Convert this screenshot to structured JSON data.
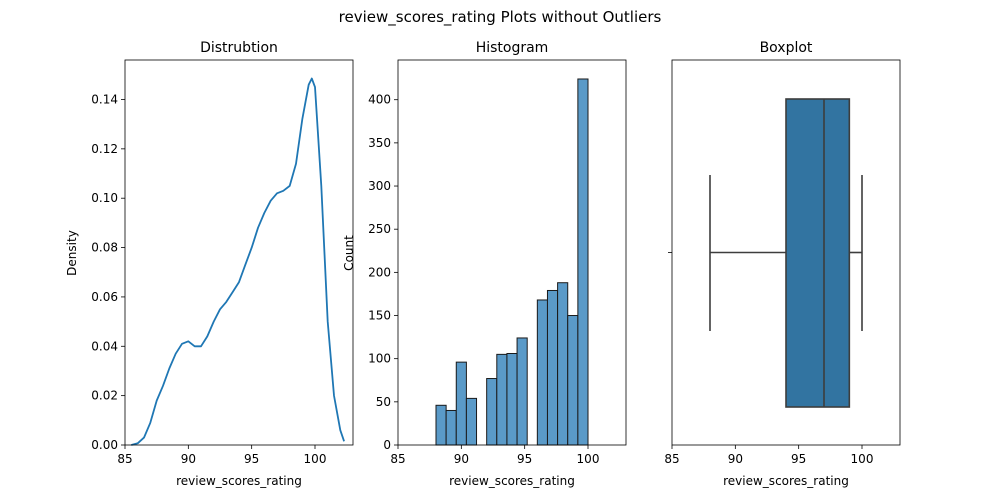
{
  "figure": {
    "suptitle": "review_scores_rating Plots without Outliers"
  },
  "chart_data": [
    {
      "type": "area",
      "title": "Distrubtion",
      "xlabel": "review_scores_rating",
      "ylabel": "Density",
      "xlim": [
        85,
        103
      ],
      "ylim": [
        0,
        0.156
      ],
      "xticks": [
        "85",
        "90",
        "95",
        "100"
      ],
      "yticks": [
        "0.00",
        "0.02",
        "0.04",
        "0.06",
        "0.08",
        "0.10",
        "0.12",
        "0.14"
      ],
      "series": [
        {
          "x": [
            85.5,
            86.0,
            86.5,
            87.0,
            87.5,
            88.0,
            88.5,
            89.0,
            89.5,
            90.0,
            90.5,
            91.0,
            91.5,
            92.0,
            92.5,
            93.0,
            93.5,
            94.0,
            94.5,
            95.0,
            95.5,
            96.0,
            96.5,
            97.0,
            97.5,
            98.0,
            98.5,
            99.0,
            99.5,
            99.75,
            100.0,
            100.5,
            101.0,
            101.5,
            102.0,
            102.3
          ],
          "y": [
            0.0,
            0.0007,
            0.003,
            0.009,
            0.018,
            0.024,
            0.031,
            0.037,
            0.041,
            0.042,
            0.04,
            0.04,
            0.044,
            0.05,
            0.055,
            0.058,
            0.062,
            0.066,
            0.073,
            0.08,
            0.088,
            0.094,
            0.099,
            0.102,
            0.103,
            0.105,
            0.114,
            0.132,
            0.146,
            0.1485,
            0.145,
            0.105,
            0.05,
            0.02,
            0.006,
            0.0015
          ]
        }
      ],
      "color": "#1f77b4"
    },
    {
      "type": "bar",
      "title": "Histogram",
      "xlabel": "review_scores_rating",
      "ylabel": "Count",
      "xlim": [
        85,
        103
      ],
      "ylim": [
        0,
        446
      ],
      "xticks": [
        "85",
        "90",
        "95",
        "100"
      ],
      "yticks": [
        "0",
        "50",
        "100",
        "150",
        "200",
        "250",
        "300",
        "350",
        "400"
      ],
      "bins": [
        {
          "x0": 88.0,
          "x1": 88.8,
          "value": 46
        },
        {
          "x0": 88.8,
          "x1": 89.6,
          "value": 40
        },
        {
          "x0": 89.6,
          "x1": 90.4,
          "value": 96
        },
        {
          "x0": 90.4,
          "x1": 91.2,
          "value": 54
        },
        {
          "x0": 92.0,
          "x1": 92.8,
          "value": 77
        },
        {
          "x0": 92.8,
          "x1": 93.6,
          "value": 105
        },
        {
          "x0": 93.6,
          "x1": 94.4,
          "value": 106
        },
        {
          "x0": 94.4,
          "x1": 95.2,
          "value": 124
        },
        {
          "x0": 96.0,
          "x1": 96.8,
          "value": 168
        },
        {
          "x0": 96.8,
          "x1": 97.6,
          "value": 179
        },
        {
          "x0": 97.6,
          "x1": 98.4,
          "value": 188
        },
        {
          "x0": 98.4,
          "x1": 99.2,
          "value": 150
        },
        {
          "x0": 99.2,
          "x1": 100.0,
          "value": 424
        }
      ],
      "color": "#5a9ac8",
      "edge_color": "#1a1a1a"
    },
    {
      "type": "box",
      "title": "Boxplot",
      "xlabel": "review_scores_rating",
      "ylabel": "",
      "xlim": [
        85,
        103
      ],
      "xticks": [
        "85",
        "90",
        "95",
        "100"
      ],
      "stats": {
        "whisker_low": 88,
        "q1": 94,
        "median": 97,
        "q3": 99,
        "whisker_high": 100
      },
      "color": "#3274a1"
    }
  ]
}
